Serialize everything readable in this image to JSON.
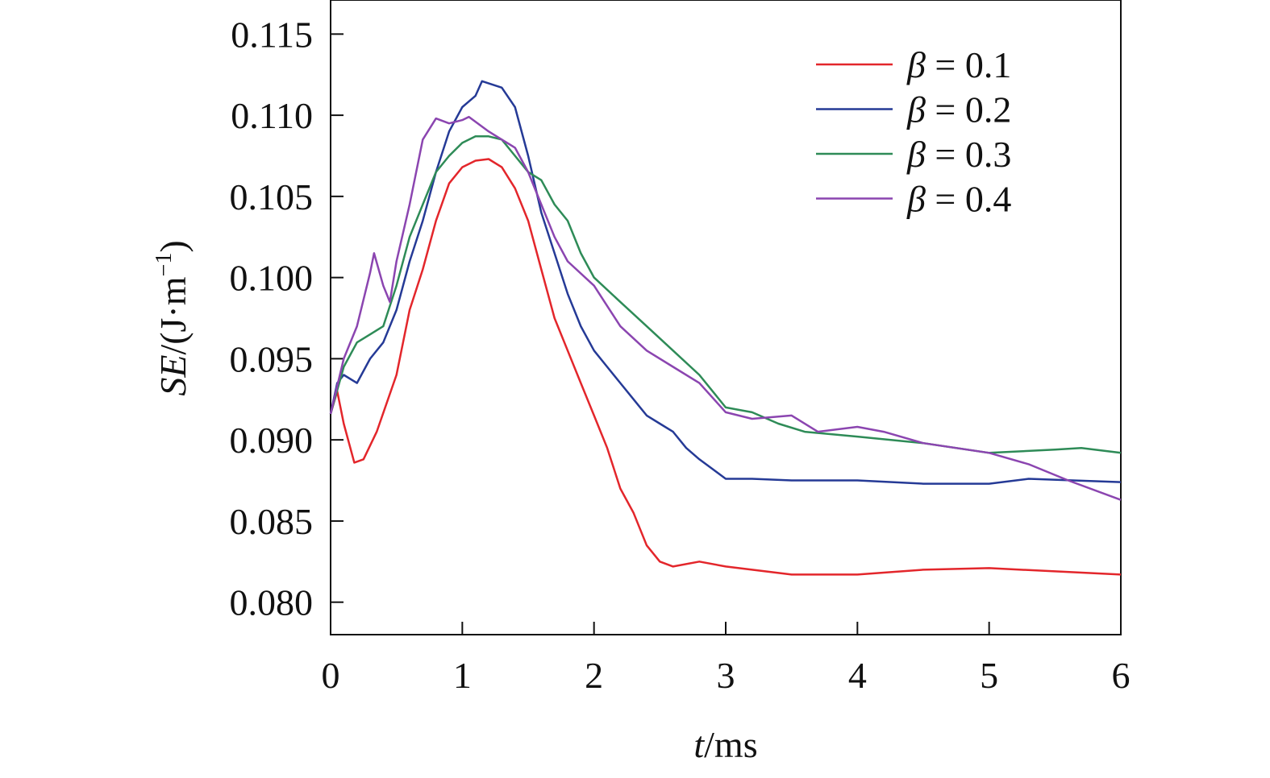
{
  "chart_data": {
    "type": "line",
    "title": "",
    "xlabel_italic": "t",
    "xlabel_rest": "/ms",
    "ylabel_italic": "SE",
    "ylabel_rest": "/(J·m",
    "ylabel_sup": "−1",
    "ylabel_close": ")",
    "xlim": [
      0,
      6
    ],
    "ylim": [
      0.078,
      0.1171
    ],
    "xticks": [
      "0",
      "1",
      "2",
      "3",
      "4",
      "5",
      "6"
    ],
    "yticks": [
      "0.080",
      "0.085",
      "0.090",
      "0.095",
      "0.100",
      "0.105",
      "0.110",
      "0.115"
    ],
    "grid": false,
    "legend_position": "top-right",
    "series": [
      {
        "name": "β = 0.1",
        "color": "#e3262b",
        "x": [
          0,
          0.05,
          0.1,
          0.18,
          0.25,
          0.35,
          0.5,
          0.6,
          0.7,
          0.8,
          0.9,
          1.0,
          1.1,
          1.2,
          1.3,
          1.4,
          1.5,
          1.6,
          1.7,
          1.8,
          1.9,
          2.0,
          2.1,
          2.2,
          2.3,
          2.4,
          2.5,
          2.6,
          2.8,
          3.0,
          3.2,
          3.5,
          4.0,
          4.5,
          5.0,
          5.5,
          6.0
        ],
        "y": [
          0.0916,
          0.093,
          0.091,
          0.0886,
          0.0888,
          0.0905,
          0.094,
          0.098,
          0.1005,
          0.1035,
          0.1058,
          0.1068,
          0.1072,
          0.1073,
          0.1068,
          0.1055,
          0.1035,
          0.1005,
          0.0975,
          0.0955,
          0.0935,
          0.0915,
          0.0895,
          0.087,
          0.0855,
          0.0835,
          0.0825,
          0.0822,
          0.0825,
          0.0822,
          0.082,
          0.0817,
          0.0817,
          0.082,
          0.0821,
          0.0819,
          0.0817
        ]
      },
      {
        "name": "β = 0.2",
        "color": "#253a96",
        "x": [
          0,
          0.05,
          0.1,
          0.2,
          0.3,
          0.4,
          0.5,
          0.6,
          0.7,
          0.8,
          0.9,
          1.0,
          1.1,
          1.15,
          1.3,
          1.4,
          1.5,
          1.6,
          1.7,
          1.8,
          1.9,
          2.0,
          2.1,
          2.2,
          2.3,
          2.4,
          2.5,
          2.6,
          2.7,
          2.8,
          2.9,
          3.0,
          3.2,
          3.5,
          4.0,
          4.5,
          5.0,
          5.3,
          6.0
        ],
        "y": [
          0.0916,
          0.0935,
          0.094,
          0.0935,
          0.095,
          0.096,
          0.098,
          0.101,
          0.1035,
          0.1065,
          0.109,
          0.1105,
          0.1112,
          0.1121,
          0.1117,
          0.1105,
          0.1075,
          0.104,
          0.1015,
          0.099,
          0.097,
          0.0955,
          0.0945,
          0.0935,
          0.0925,
          0.0915,
          0.091,
          0.0905,
          0.0895,
          0.0888,
          0.0882,
          0.0876,
          0.0876,
          0.0875,
          0.0875,
          0.0873,
          0.0873,
          0.0876,
          0.0874
        ]
      },
      {
        "name": "β = 0.3",
        "color": "#2e8b57",
        "x": [
          0,
          0.1,
          0.2,
          0.3,
          0.4,
          0.5,
          0.6,
          0.7,
          0.8,
          0.9,
          1.0,
          1.1,
          1.2,
          1.3,
          1.4,
          1.5,
          1.6,
          1.7,
          1.8,
          1.9,
          2.0,
          2.2,
          2.4,
          2.6,
          2.8,
          3.0,
          3.2,
          3.4,
          3.6,
          4.0,
          4.5,
          5.0,
          5.5,
          5.7,
          6.0
        ],
        "y": [
          0.0916,
          0.0945,
          0.096,
          0.0965,
          0.097,
          0.0995,
          0.1025,
          0.1045,
          0.1065,
          0.1075,
          0.1083,
          0.1087,
          0.1087,
          0.1085,
          0.1075,
          0.1065,
          0.106,
          0.1045,
          0.1035,
          0.1015,
          0.1,
          0.0985,
          0.097,
          0.0955,
          0.094,
          0.092,
          0.0917,
          0.091,
          0.0905,
          0.0902,
          0.0898,
          0.0892,
          0.0894,
          0.0895,
          0.0892
        ]
      },
      {
        "name": "β = 0.4",
        "color": "#8b45b0",
        "x": [
          0,
          0.1,
          0.2,
          0.3,
          0.33,
          0.4,
          0.45,
          0.5,
          0.6,
          0.7,
          0.8,
          0.9,
          1.0,
          1.05,
          1.2,
          1.3,
          1.4,
          1.5,
          1.6,
          1.7,
          1.8,
          2.0,
          2.2,
          2.4,
          2.6,
          2.8,
          3.0,
          3.2,
          3.5,
          3.7,
          4.0,
          4.2,
          4.5,
          5.0,
          5.3,
          5.6,
          6.0
        ],
        "y": [
          0.0916,
          0.095,
          0.097,
          0.1003,
          0.1015,
          0.0995,
          0.0985,
          0.101,
          0.1045,
          0.1085,
          0.1098,
          0.1095,
          0.1097,
          0.1099,
          0.109,
          0.1085,
          0.108,
          0.1065,
          0.1045,
          0.1025,
          0.101,
          0.0995,
          0.097,
          0.0955,
          0.0945,
          0.0935,
          0.0917,
          0.0913,
          0.0915,
          0.0905,
          0.0908,
          0.0905,
          0.0898,
          0.0892,
          0.0885,
          0.0875,
          0.0863
        ]
      }
    ]
  }
}
